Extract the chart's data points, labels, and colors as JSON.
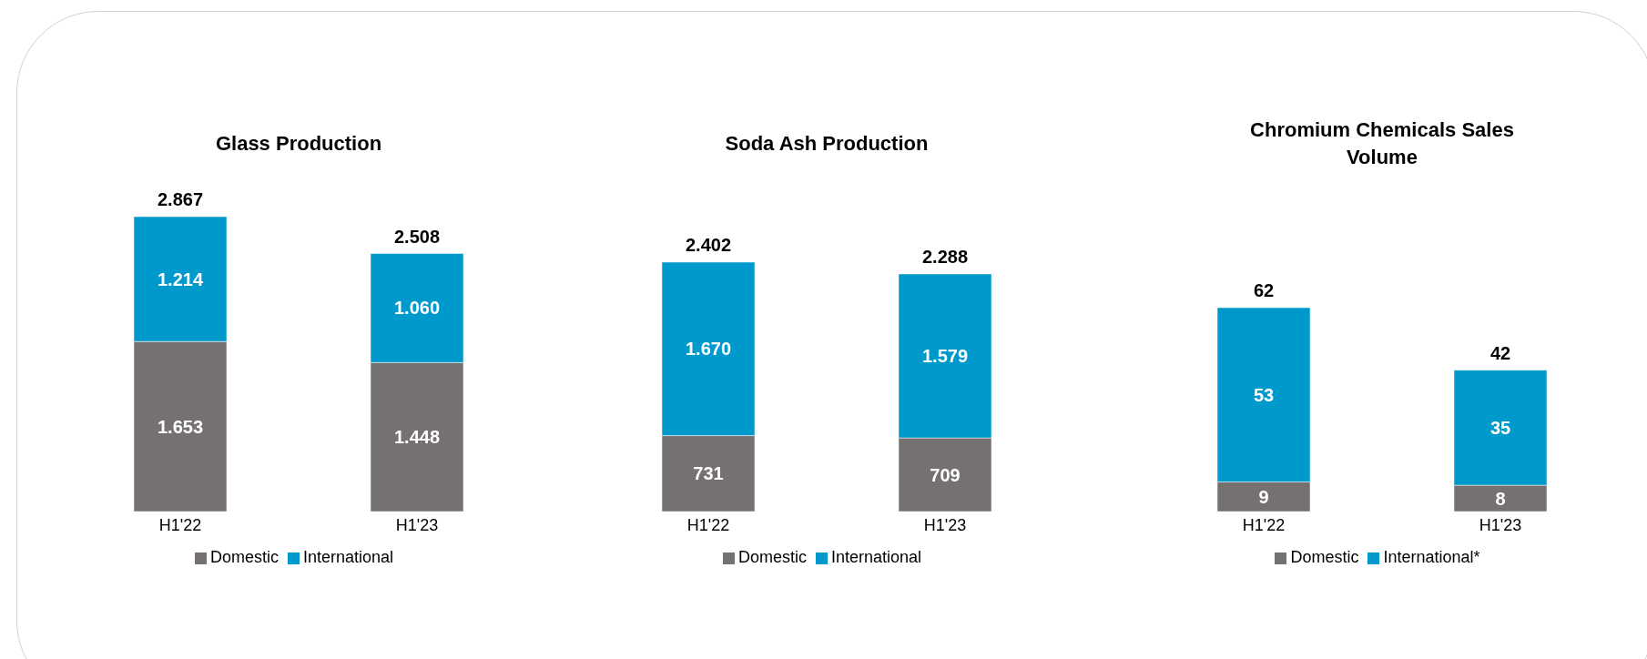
{
  "chart_data": [
    {
      "type": "bar",
      "title": "Glass Production",
      "categories": [
        "H1'22",
        "H1'23"
      ],
      "stacked": true,
      "legend": "bottom",
      "totals": [
        "2.867",
        "2.508"
      ],
      "series": [
        {
          "name": "Domestic",
          "color": "#767171",
          "values": [
            1653,
            1448
          ],
          "value_labels": [
            "1.653",
            "1.448"
          ]
        },
        {
          "name": "International",
          "color": "#0099cc",
          "values": [
            1214,
            1060
          ],
          "value_labels": [
            "1.214",
            "1.060"
          ]
        }
      ]
    },
    {
      "type": "bar",
      "title": "Soda Ash  Production",
      "categories": [
        "H1'22",
        "H1'23"
      ],
      "stacked": true,
      "legend": "bottom",
      "totals": [
        "2.402",
        "2.288"
      ],
      "series": [
        {
          "name": "Domestic",
          "color": "#767171",
          "values": [
            731,
            709
          ],
          "value_labels": [
            "731",
            "709"
          ]
        },
        {
          "name": "International",
          "color": "#0099cc",
          "values": [
            1670,
            1579
          ],
          "value_labels": [
            "1.670",
            "1.579"
          ]
        }
      ]
    },
    {
      "type": "bar",
      "title": "Chromium Chemicals Sales Volume",
      "categories": [
        "H1'22",
        "H1'23"
      ],
      "stacked": true,
      "legend": "bottom",
      "totals": [
        "62",
        "42"
      ],
      "series": [
        {
          "name": "Domestic",
          "color": "#767171",
          "values": [
            9,
            8
          ],
          "value_labels": [
            "9",
            "8"
          ]
        },
        {
          "name": "International*",
          "color": "#0099cc",
          "values": [
            53,
            35
          ],
          "value_labels": [
            "53",
            "35"
          ]
        }
      ]
    }
  ]
}
